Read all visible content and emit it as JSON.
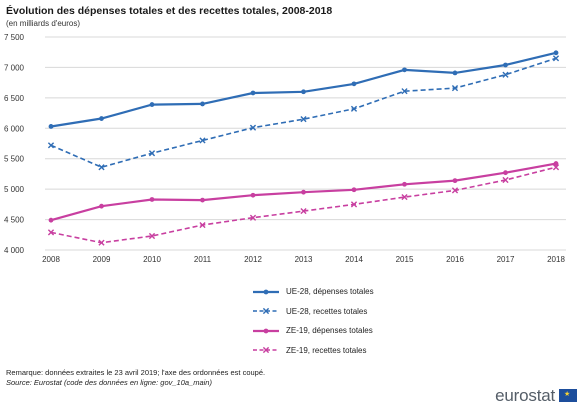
{
  "header": {
    "title": "Évolution des dépenses totales et des recettes totales, 2008-2018",
    "subtitle": "(en milliards d'euros)"
  },
  "footer": {
    "remark": "Remarque: données extraites le 23 avril 2019; l'axe des ordonnées est coupé.",
    "source": "Source: Eurostat (code des données en ligne: gov_10a_main)"
  },
  "logo": {
    "text": "eurostat"
  },
  "chart_data": {
    "type": "line",
    "title": "Évolution des dépenses totales et des recettes totales, 2008-2018",
    "subtitle": "(en milliards d'euros)",
    "x": [
      "2008",
      "2009",
      "2010",
      "2011",
      "2012",
      "2013",
      "2014",
      "2015",
      "2016",
      "2017",
      "2018"
    ],
    "ylim": [
      4000,
      7500
    ],
    "yticks": [
      4000,
      4500,
      5000,
      5500,
      6000,
      6500,
      7000,
      7500
    ],
    "ytick_labels": [
      "4 000",
      "4 500",
      "5 000",
      "5 500",
      "6 000",
      "6 500",
      "7 000",
      "7 500"
    ],
    "grid": "horizontal",
    "legend_position": "bottom",
    "series": [
      {
        "name": "UE-28, dépenses totales",
        "color": "#2f6db5",
        "dash": "solid",
        "marker": "dot",
        "values": [
          6030,
          6160,
          6390,
          6400,
          6580,
          6600,
          6730,
          6960,
          6910,
          7040,
          7240
        ]
      },
      {
        "name": "UE-28, recettes totales",
        "color": "#2f6db5",
        "dash": "dashed",
        "marker": "x",
        "values": [
          5720,
          5360,
          5590,
          5800,
          6010,
          6150,
          6320,
          6610,
          6660,
          6880,
          7150
        ]
      },
      {
        "name": "ZE-19, dépenses totales",
        "color": "#c83fa0",
        "dash": "solid",
        "marker": "dot",
        "values": [
          4490,
          4720,
          4830,
          4820,
          4900,
          4950,
          4990,
          5080,
          5140,
          5270,
          5420
        ]
      },
      {
        "name": "ZE-19, recettes totales",
        "color": "#c83fa0",
        "dash": "dashed",
        "marker": "x",
        "values": [
          4290,
          4120,
          4230,
          4410,
          4530,
          4640,
          4750,
          4870,
          4980,
          5150,
          5360
        ]
      }
    ]
  }
}
